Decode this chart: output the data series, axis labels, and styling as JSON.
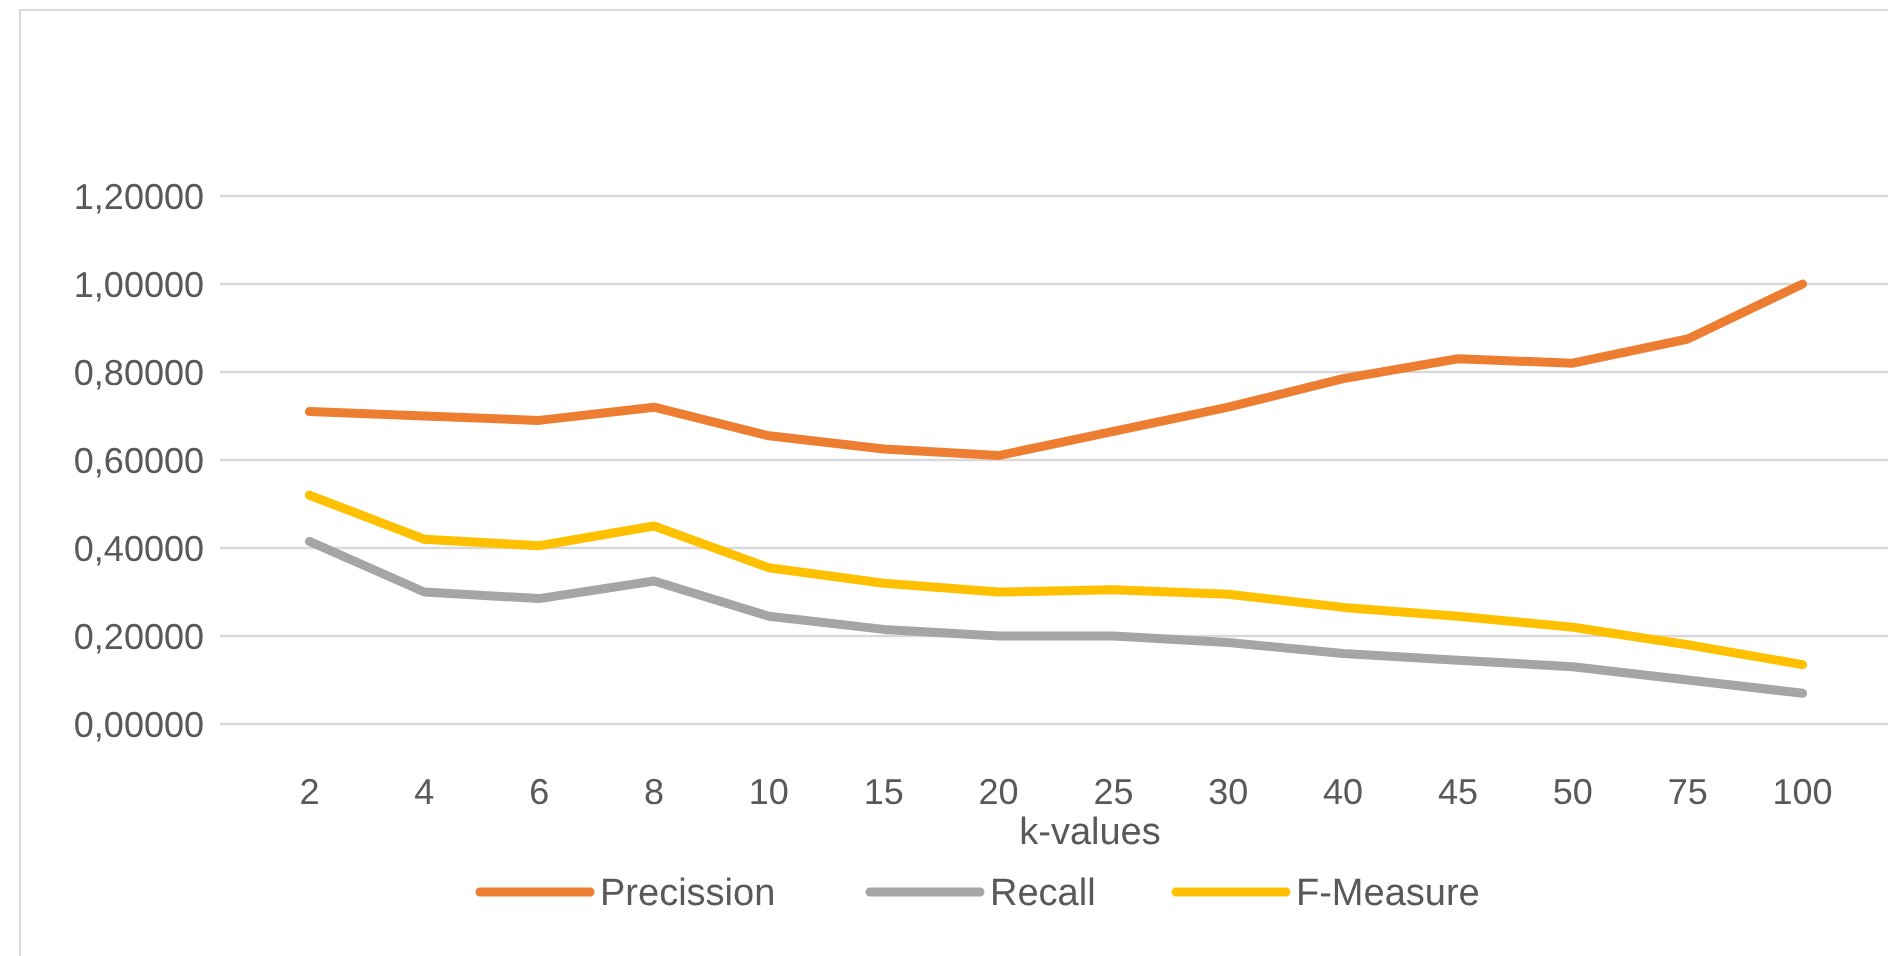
{
  "chart_data": {
    "type": "line",
    "xlabel": "k-values",
    "categories": [
      "2",
      "4",
      "6",
      "8",
      "10",
      "15",
      "20",
      "25",
      "30",
      "40",
      "45",
      "50",
      "75",
      "100"
    ],
    "series": [
      {
        "name": "Precission",
        "color": "#ed7d31",
        "values": [
          0.71,
          0.7,
          0.69,
          0.72,
          0.655,
          0.625,
          0.61,
          0.665,
          0.72,
          0.785,
          0.83,
          0.82,
          0.875,
          1.0
        ]
      },
      {
        "name": "Recall",
        "color": "#a5a5a5",
        "values": [
          0.415,
          0.3,
          0.285,
          0.325,
          0.245,
          0.215,
          0.2,
          0.2,
          0.185,
          0.16,
          0.145,
          0.13,
          0.1,
          0.07
        ]
      },
      {
        "name": "F-Measure",
        "color": "#ffc000",
        "values": [
          0.52,
          0.42,
          0.405,
          0.45,
          0.355,
          0.32,
          0.3,
          0.305,
          0.295,
          0.265,
          0.245,
          0.22,
          0.18,
          0.135
        ]
      }
    ],
    "ylim": [
      0,
      1.2
    ],
    "yticks": [
      {
        "value": 0,
        "label": "0,00000"
      },
      {
        "value": 0.2,
        "label": "0,20000"
      },
      {
        "value": 0.4,
        "label": "0,40000"
      },
      {
        "value": 0.6,
        "label": "0,60000"
      },
      {
        "value": 0.8,
        "label": "0,80000"
      },
      {
        "value": 1.0,
        "label": "1,00000"
      },
      {
        "value": 1.2,
        "label": "1,20000"
      }
    ],
    "grid": "y",
    "legend": "bottom",
    "marker": "none",
    "line_style": "solid"
  }
}
